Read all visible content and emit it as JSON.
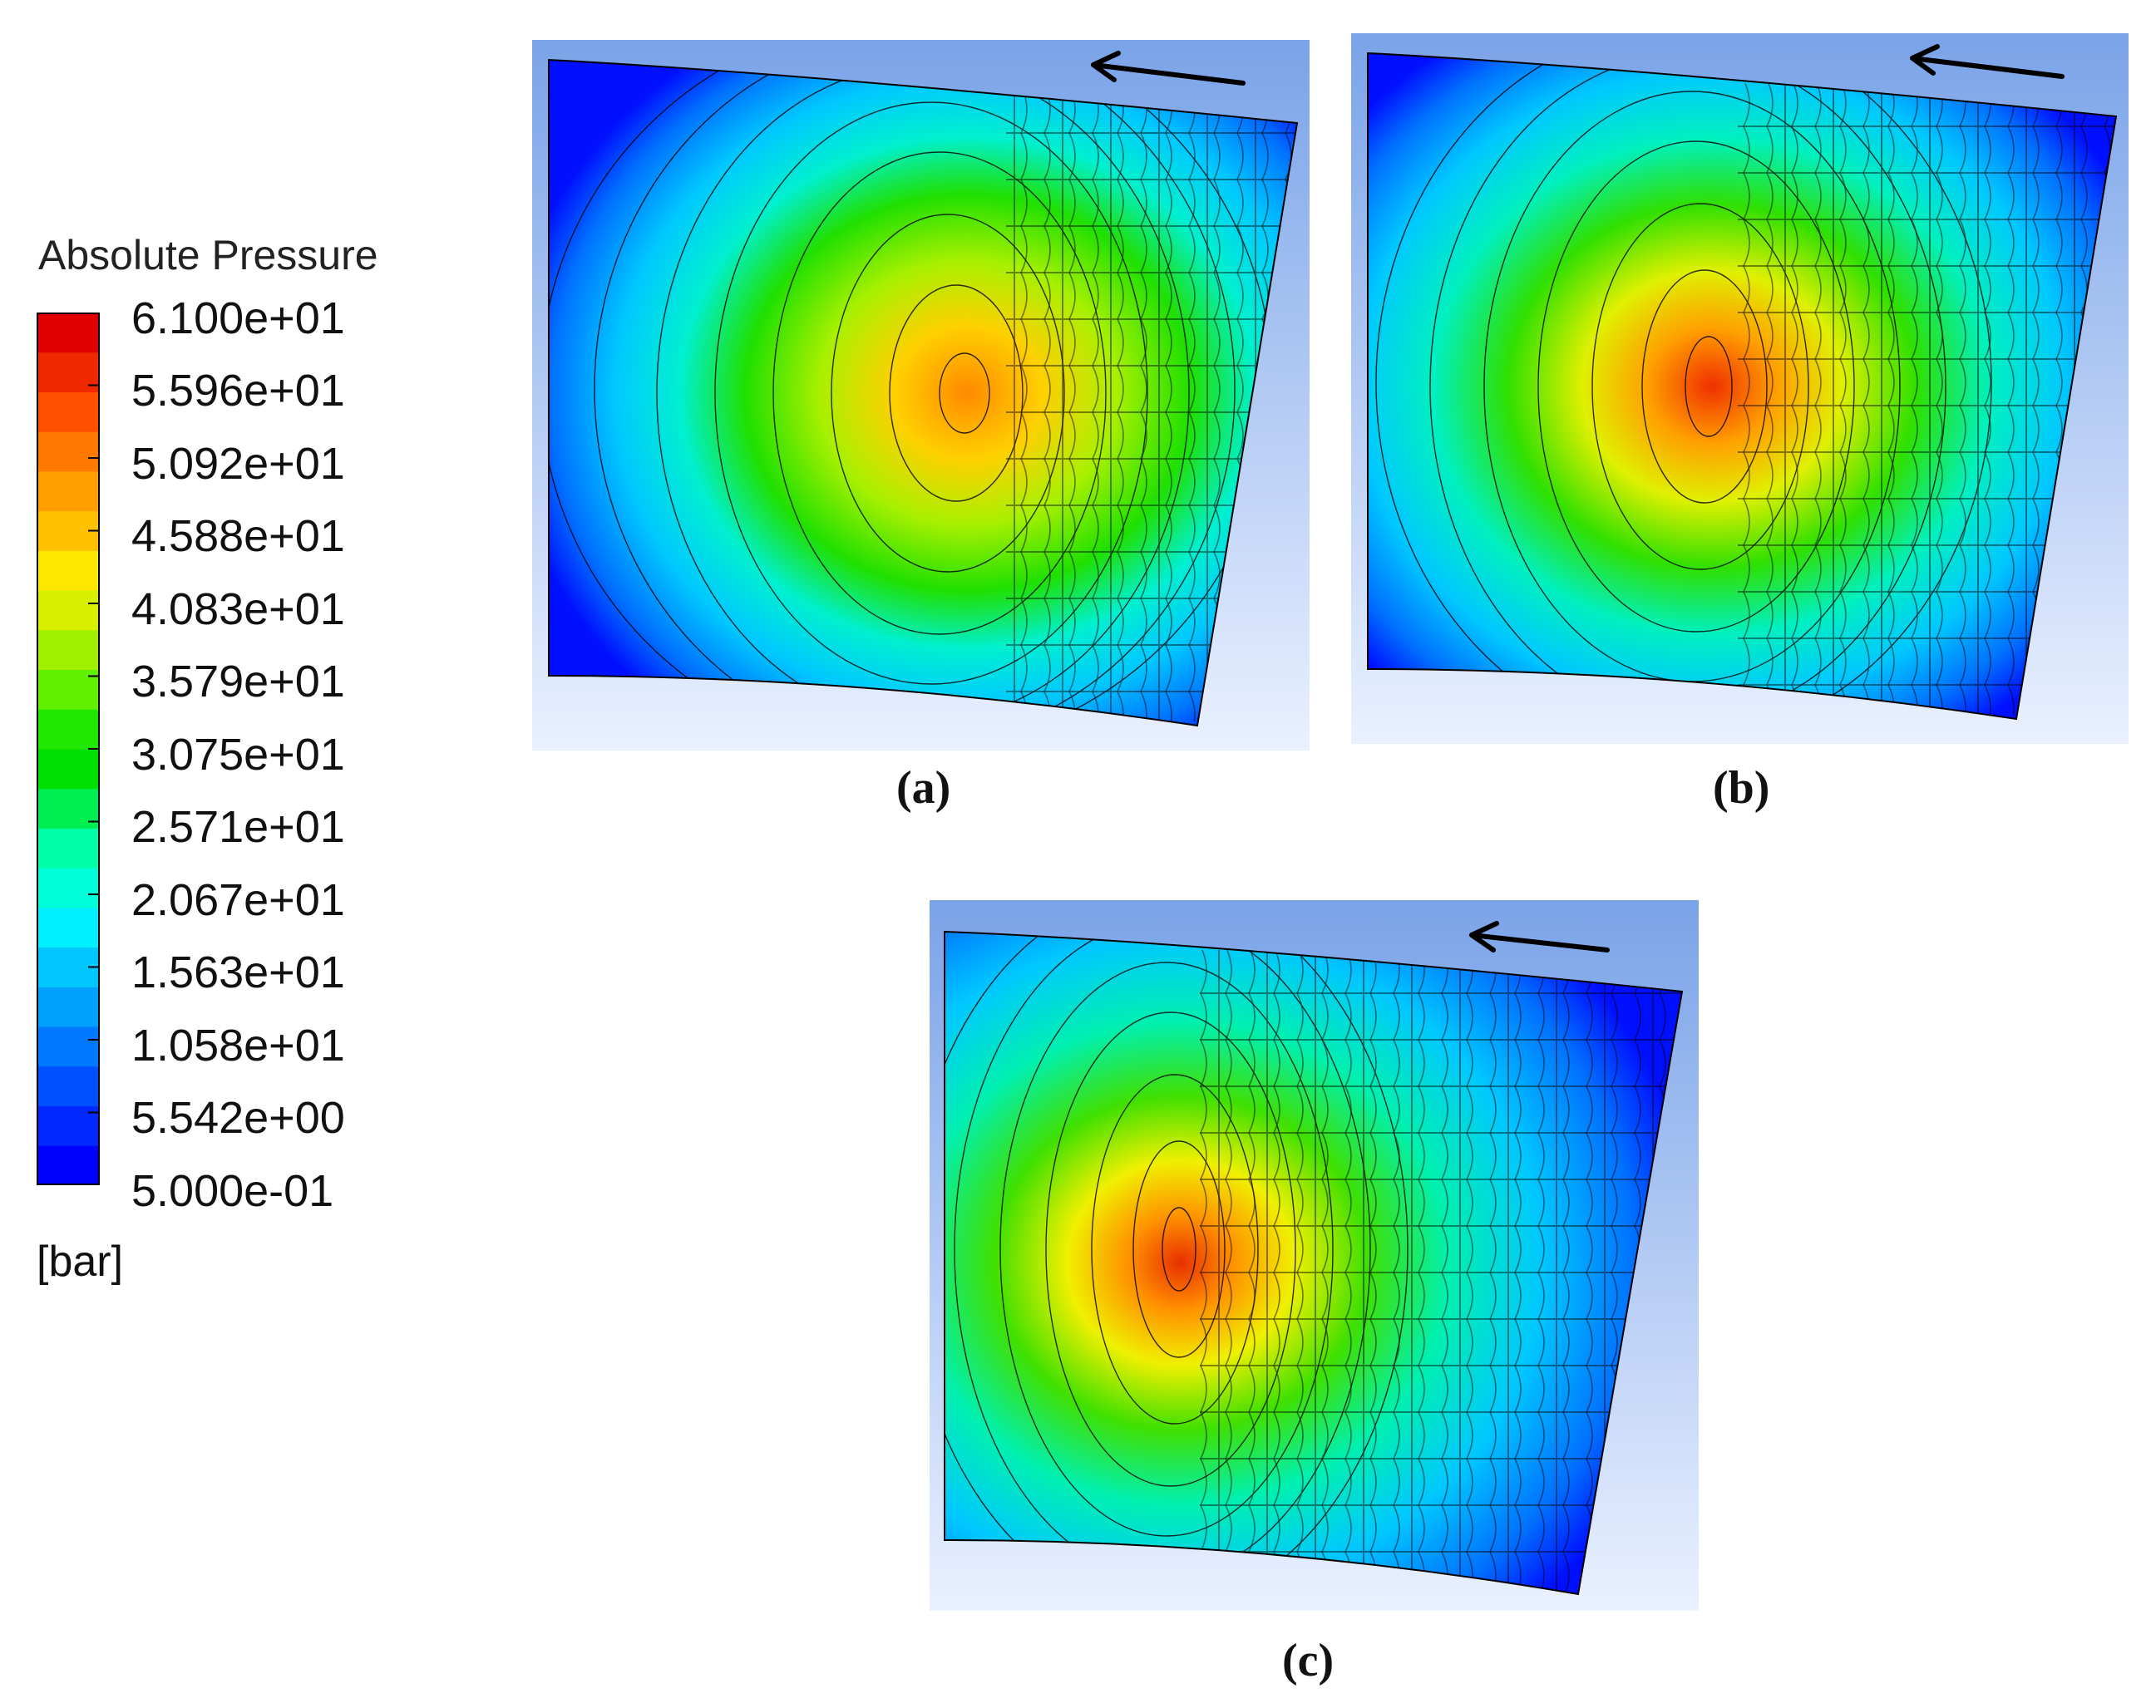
{
  "legend": {
    "title": "Absolute Pressure",
    "unit": "[bar]",
    "ticks": [
      "6.100e+01",
      "5.596e+01",
      "5.092e+01",
      "4.588e+01",
      "4.083e+01",
      "3.579e+01",
      "3.075e+01",
      "2.571e+01",
      "2.067e+01",
      "1.563e+01",
      "1.058e+01",
      "5.542e+00",
      "5.000e-01"
    ],
    "colors": [
      "#0000ff",
      "#0028ff",
      "#0050ff",
      "#0078ff",
      "#00a0ff",
      "#00c8ff",
      "#00f0ff",
      "#00ffd8",
      "#00ffa8",
      "#00ef50",
      "#00e000",
      "#20e800",
      "#60f000",
      "#a0f000",
      "#d8f000",
      "#ffe800",
      "#ffc000",
      "#ffa000",
      "#ff7800",
      "#ff5000",
      "#f02800",
      "#e00000"
    ]
  },
  "panels": [
    {
      "caption": "(a)",
      "peak_color": "#ff8a00",
      "peak_rel_x": 0.56
    },
    {
      "caption": "(b)",
      "peak_color": "#f03000",
      "peak_rel_x": 0.46
    },
    {
      "caption": "(c)",
      "peak_color": "#e83000",
      "peak_rel_x": 0.32
    }
  ]
}
